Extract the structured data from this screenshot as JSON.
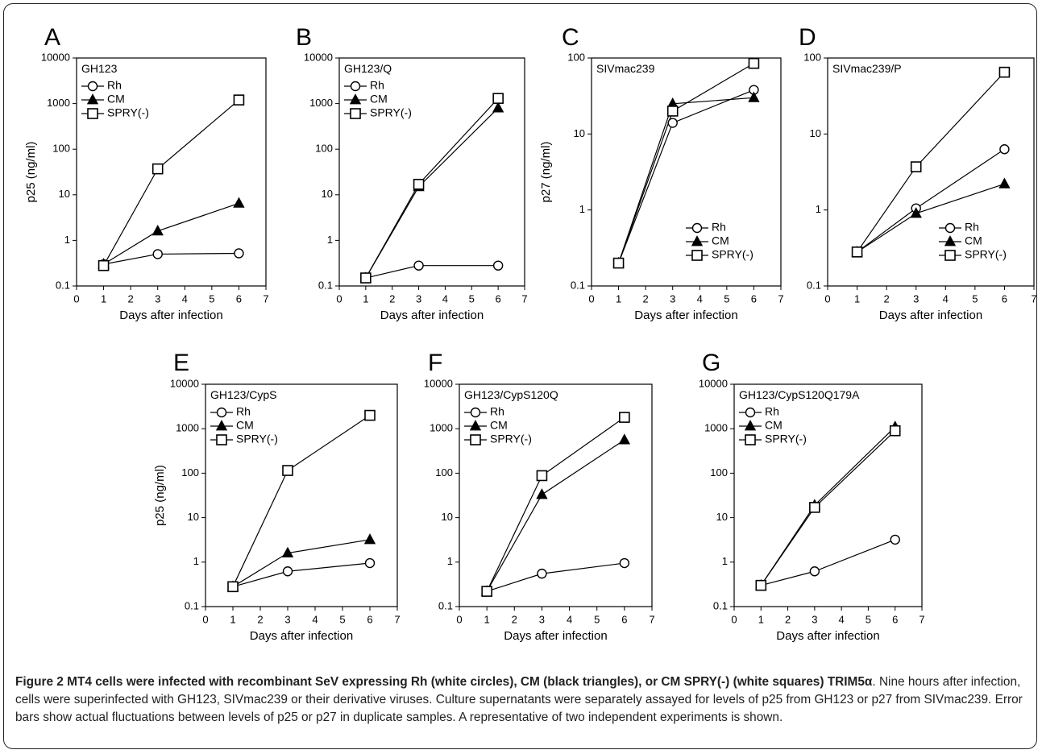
{
  "caption": {
    "bold": "Figure 2 MT4 cells were infected with recombinant SeV expressing Rh (white circles), CM (black triangles), or CM SPRY(-) (white squares) TRIM5α",
    "rest": ". Nine hours after infection, cells were superinfected with GH123, SIVmac239 or their derivative viruses. Culture supernatants were separately assayed for levels of p25 from GH123 or p27 from SIVmac239. Error bars show actual fluctuations between levels of p25 or p27 in duplicate samples. A representative of two independent experiments is shown."
  },
  "chart_data": [
    {
      "panel": "A",
      "type": "line",
      "title": "GH123",
      "xlabel": "Days after infection",
      "ylabel": "p25 (ng/ml)",
      "xlim": [
        0,
        7
      ],
      "ylim": [
        0.1,
        10000
      ],
      "yscale": "log",
      "x_ticks": [
        "0",
        "1",
        "2",
        "3",
        "4",
        "5",
        "6",
        "7"
      ],
      "y_ticks": [
        "0.1",
        "1",
        "10",
        "100",
        "1000",
        "10000"
      ],
      "legend": "top-left",
      "x": [
        1,
        3,
        6
      ],
      "series": [
        {
          "name": "Rh",
          "marker": "circle",
          "values": [
            0.3,
            0.5,
            0.52
          ]
        },
        {
          "name": "CM",
          "marker": "triangle",
          "values": [
            0.3,
            1.6,
            6.5
          ]
        },
        {
          "name": "SPRY(-)",
          "marker": "square",
          "values": [
            0.28,
            37,
            1200
          ]
        }
      ]
    },
    {
      "panel": "B",
      "type": "line",
      "title": "GH123/Q",
      "xlabel": "Days after infection",
      "ylabel": "",
      "xlim": [
        0,
        7
      ],
      "ylim": [
        0.1,
        10000
      ],
      "yscale": "log",
      "x_ticks": [
        "0",
        "1",
        "2",
        "3",
        "4",
        "5",
        "6",
        "7"
      ],
      "y_ticks": [
        "0.1",
        "1",
        "10",
        "100",
        "1000",
        "10000"
      ],
      "legend": "top-left",
      "x": [
        1,
        3,
        6
      ],
      "series": [
        {
          "name": "Rh",
          "marker": "circle",
          "values": [
            0.15,
            0.28,
            0.28
          ]
        },
        {
          "name": "CM",
          "marker": "triangle",
          "values": [
            0.15,
            15,
            800
          ]
        },
        {
          "name": "SPRY(-)",
          "marker": "square",
          "values": [
            0.15,
            17,
            1300
          ]
        }
      ]
    },
    {
      "panel": "C",
      "type": "line",
      "title": "SIVmac239",
      "xlabel": "Days after infection",
      "ylabel": "p27 (ng/ml)",
      "xlim": [
        0,
        7
      ],
      "ylim": [
        0.1,
        100
      ],
      "yscale": "log",
      "x_ticks": [
        "0",
        "1",
        "2",
        "3",
        "4",
        "5",
        "6",
        "7"
      ],
      "y_ticks": [
        "0.1",
        "1",
        "10",
        "100"
      ],
      "legend": "bottom-right",
      "x": [
        1,
        3,
        6
      ],
      "series": [
        {
          "name": "Rh",
          "marker": "circle",
          "values": [
            0.2,
            14,
            38
          ]
        },
        {
          "name": "CM",
          "marker": "triangle",
          "values": [
            0.2,
            25,
            30
          ]
        },
        {
          "name": "SPRY(-)",
          "marker": "square",
          "values": [
            0.2,
            20,
            85
          ]
        }
      ]
    },
    {
      "panel": "D",
      "type": "line",
      "title": "SIVmac239/P",
      "xlabel": "Days after infection",
      "ylabel": "",
      "xlim": [
        0,
        7
      ],
      "ylim": [
        0.1,
        100
      ],
      "yscale": "log",
      "x_ticks": [
        "0",
        "1",
        "2",
        "3",
        "4",
        "5",
        "6",
        "7"
      ],
      "y_ticks": [
        "0.1",
        "1",
        "10",
        "100"
      ],
      "legend": "bottom-right",
      "x": [
        1,
        3,
        6
      ],
      "series": [
        {
          "name": "Rh",
          "marker": "circle",
          "values": [
            0.28,
            1.05,
            6.3
          ]
        },
        {
          "name": "CM",
          "marker": "triangle",
          "values": [
            0.28,
            0.9,
            2.2
          ]
        },
        {
          "name": "SPRY(-)",
          "marker": "square",
          "values": [
            0.28,
            3.7,
            65
          ]
        }
      ]
    },
    {
      "panel": "E",
      "type": "line",
      "title": "GH123/CypS",
      "xlabel": "Days after infection",
      "ylabel": "p25 (ng/ml)",
      "xlim": [
        0,
        7
      ],
      "ylim": [
        0.1,
        10000
      ],
      "yscale": "log",
      "x_ticks": [
        "0",
        "1",
        "2",
        "3",
        "4",
        "5",
        "6",
        "7"
      ],
      "y_ticks": [
        "0.1",
        "1",
        "10",
        "100",
        "1000",
        "10000"
      ],
      "legend": "top-left",
      "x": [
        1,
        3,
        6
      ],
      "series": [
        {
          "name": "Rh",
          "marker": "circle",
          "values": [
            0.28,
            0.62,
            0.95
          ]
        },
        {
          "name": "CM",
          "marker": "triangle",
          "values": [
            0.28,
            1.6,
            3.2
          ]
        },
        {
          "name": "SPRY(-)",
          "marker": "square",
          "values": [
            0.28,
            115,
            2000
          ]
        }
      ]
    },
    {
      "panel": "F",
      "type": "line",
      "title": "GH123/CypS120Q",
      "xlabel": "Days after infection",
      "ylabel": "",
      "xlim": [
        0,
        7
      ],
      "ylim": [
        0.1,
        10000
      ],
      "yscale": "log",
      "x_ticks": [
        "0",
        "1",
        "2",
        "3",
        "4",
        "5",
        "6",
        "7"
      ],
      "y_ticks": [
        "0.1",
        "1",
        "10",
        "100",
        "1000",
        "10000"
      ],
      "legend": "top-left",
      "x": [
        1,
        3,
        6
      ],
      "series": [
        {
          "name": "Rh",
          "marker": "circle",
          "values": [
            0.22,
            0.55,
            0.95
          ]
        },
        {
          "name": "CM",
          "marker": "triangle",
          "values": [
            0.22,
            33,
            560
          ]
        },
        {
          "name": "SPRY(-)",
          "marker": "square",
          "values": [
            0.22,
            88,
            1800
          ]
        }
      ]
    },
    {
      "panel": "G",
      "type": "line",
      "title": "GH123/CypS120Q179A",
      "xlabel": "Days after infection",
      "ylabel": "",
      "xlim": [
        0,
        7
      ],
      "ylim": [
        0.1,
        10000
      ],
      "yscale": "log",
      "x_ticks": [
        "0",
        "1",
        "2",
        "3",
        "4",
        "5",
        "6",
        "7"
      ],
      "y_ticks": [
        "0.1",
        "1",
        "10",
        "100",
        "1000",
        "10000"
      ],
      "legend": "top-left",
      "x": [
        1,
        3,
        6
      ],
      "series": [
        {
          "name": "Rh",
          "marker": "circle",
          "values": [
            0.3,
            0.62,
            3.2
          ]
        },
        {
          "name": "CM",
          "marker": "triangle",
          "values": [
            0.3,
            19,
            1100
          ]
        },
        {
          "name": "SPRY(-)",
          "marker": "square",
          "values": [
            0.3,
            17,
            900
          ]
        }
      ]
    }
  ]
}
